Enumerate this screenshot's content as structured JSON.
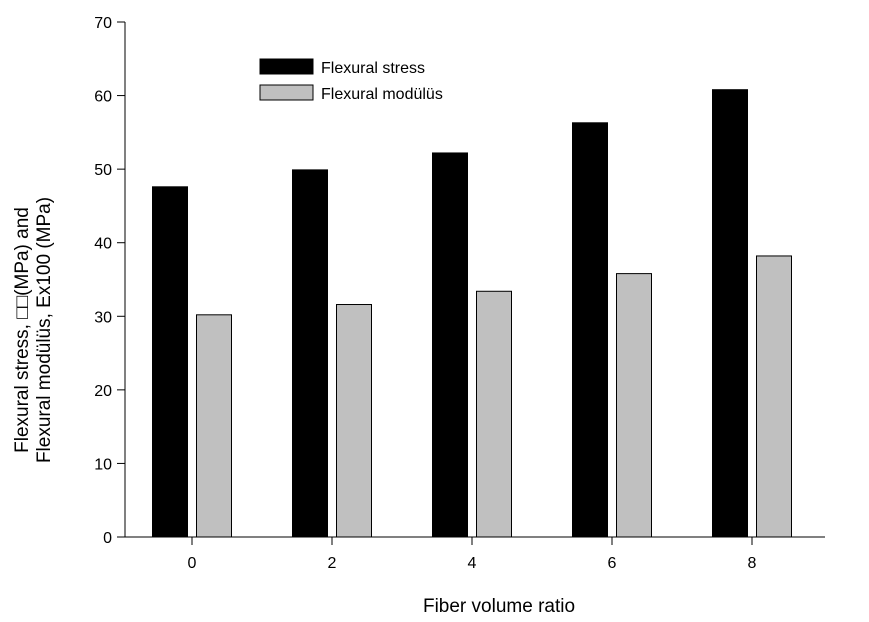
{
  "chart_data": {
    "type": "bar",
    "xlabel": "Fiber volume ratio",
    "ylabel_line1": "Flexural stress, □□(MPa) and",
    "ylabel_line2": "Flexural modülüs, Ex100 (MPa)",
    "categories": [
      "0",
      "2",
      "4",
      "6",
      "8"
    ],
    "ylim": [
      0,
      70
    ],
    "yticks": [
      0,
      10,
      20,
      30,
      40,
      50,
      60,
      70
    ],
    "grid": false,
    "legend_position": "top-left",
    "series": [
      {
        "name": "Flexural stress",
        "color": "#000000",
        "values": [
          47.6,
          49.9,
          52.2,
          56.3,
          60.8
        ]
      },
      {
        "name": "Flexural modülüs",
        "color": "#c0c0c0",
        "values": [
          30.2,
          31.6,
          33.4,
          35.8,
          38.2
        ]
      }
    ]
  }
}
